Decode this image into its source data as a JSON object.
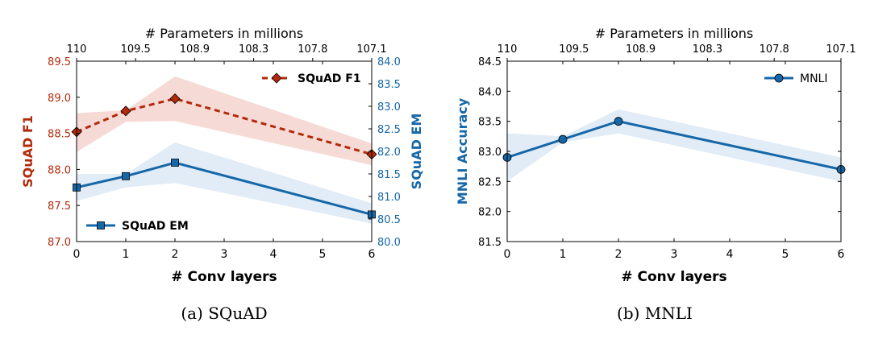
{
  "chart_data": [
    {
      "type": "line",
      "caption": "(a) SQuAD",
      "xlabel": "# Conv layers",
      "x2label": "# Parameters in millions",
      "x": [
        0,
        1,
        2,
        6
      ],
      "xlim": [
        0,
        6
      ],
      "xticks": [
        0,
        1,
        2,
        3,
        4,
        5,
        6
      ],
      "x2ticks": [
        "110",
        "109.5",
        "108.9",
        "108.3",
        "107.8",
        "107.1"
      ],
      "grid": false,
      "legend_loc": [
        "upper right",
        "lower left"
      ],
      "ylabel": "SQuAD F1",
      "ylim": [
        87.0,
        89.5
      ],
      "yticks": [
        "87.0",
        "87.5",
        "88.0",
        "88.5",
        "89.0",
        "89.5"
      ],
      "y2label": "SQuAD EM",
      "y2lim": [
        80.0,
        84.0
      ],
      "y2ticks": [
        "80.0",
        "80.5",
        "81.0",
        "81.5",
        "82.0",
        "82.5",
        "83.0",
        "83.5",
        "84.0"
      ],
      "series": [
        {
          "name": "SQuAD F1",
          "axis": "left",
          "color": "#b22a0a",
          "band_color": "#f6dad6",
          "marker": "diamond",
          "linestyle": "dashed",
          "values": [
            88.52,
            88.81,
            88.98,
            88.21
          ],
          "band_lower": [
            88.24,
            88.66,
            88.67,
            88.06
          ],
          "band_upper": [
            88.78,
            88.82,
            89.29,
            88.36
          ]
        },
        {
          "name": "SQuAD EM",
          "axis": "right",
          "color": "#1667a8",
          "band_color": "#e1ecf7",
          "marker": "square",
          "linestyle": "solid",
          "values": [
            81.2,
            81.45,
            81.75,
            80.6
          ],
          "band_lower": [
            80.9,
            81.2,
            81.3,
            80.4
          ],
          "band_upper": [
            81.5,
            81.5,
            82.2,
            80.85
          ]
        }
      ]
    },
    {
      "type": "line",
      "caption": "(b) MNLI",
      "xlabel": "# Conv layers",
      "x2label": "# Parameters in millions",
      "x": [
        0,
        1,
        2,
        6
      ],
      "xlim": [
        0,
        6
      ],
      "xticks": [
        0,
        1,
        2,
        3,
        4,
        5,
        6
      ],
      "x2ticks": [
        "110",
        "109.5",
        "108.9",
        "108.3",
        "107.8",
        "107.1"
      ],
      "grid": false,
      "legend_loc": "upper right",
      "ylabel": "MNLI Accuracy",
      "ylim": [
        81.5,
        84.5
      ],
      "yticks": [
        "81.5",
        "82.0",
        "82.5",
        "83.0",
        "83.5",
        "84.0",
        "84.5"
      ],
      "series": [
        {
          "name": "MNLI",
          "axis": "left",
          "color": "#1667a8",
          "band_color": "#e1ecf7",
          "marker": "circle",
          "linestyle": "solid",
          "values": [
            82.9,
            83.2,
            83.5,
            82.7
          ],
          "band_lower": [
            82.5,
            83.15,
            83.3,
            82.5
          ],
          "band_upper": [
            83.3,
            83.25,
            83.7,
            82.9
          ]
        }
      ]
    }
  ]
}
